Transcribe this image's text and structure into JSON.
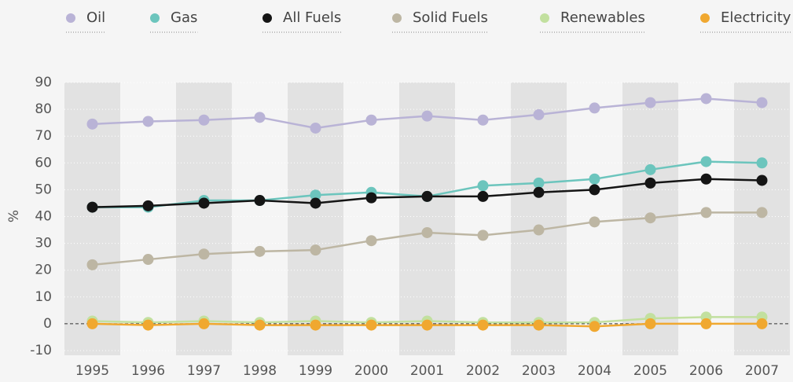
{
  "chart_data": {
    "type": "line",
    "y_label": "%",
    "categories": [
      "1995",
      "1996",
      "1997",
      "1998",
      "1999",
      "2000",
      "2001",
      "2002",
      "2003",
      "2004",
      "2005",
      "2006",
      "2007"
    ],
    "series": [
      {
        "name": "Oil",
        "color": "#b9b3d6",
        "values": [
          74.5,
          75.5,
          76,
          77,
          73,
          76,
          77.5,
          76,
          78,
          80.5,
          82.5,
          84,
          82.5
        ]
      },
      {
        "name": "Gas",
        "color": "#6cc5bd",
        "values": [
          43.5,
          43.5,
          46,
          46,
          48,
          49,
          47.5,
          51.5,
          52.5,
          54,
          57.5,
          60.5,
          60
        ]
      },
      {
        "name": "All Fuels",
        "color": "#151515",
        "values": [
          43.5,
          44,
          45,
          46,
          45,
          47,
          47.5,
          47.5,
          49,
          50,
          52.5,
          54,
          53.5
        ]
      },
      {
        "name": "Solid Fuels",
        "color": "#bdb6a3",
        "values": [
          22,
          24,
          26,
          27,
          27.5,
          31,
          34,
          33,
          35,
          38,
          39.5,
          41.5,
          41.5
        ]
      },
      {
        "name": "Renewables",
        "color": "#c2e09f",
        "values": [
          1,
          0.5,
          1,
          0.5,
          1,
          0.5,
          1,
          0.5,
          0.5,
          0.5,
          2,
          2.5,
          2.5
        ]
      },
      {
        "name": "Electricity",
        "color": "#f0a830",
        "values": [
          0,
          -0.5,
          0,
          -0.5,
          -0.5,
          -0.5,
          -0.5,
          -0.5,
          -0.5,
          -1,
          0,
          0,
          0
        ]
      }
    ],
    "ylim": [
      -10,
      90
    ],
    "yticks": [
      -10,
      0,
      10,
      20,
      30,
      40,
      50,
      60,
      70,
      80,
      90
    ],
    "legend": "top"
  }
}
